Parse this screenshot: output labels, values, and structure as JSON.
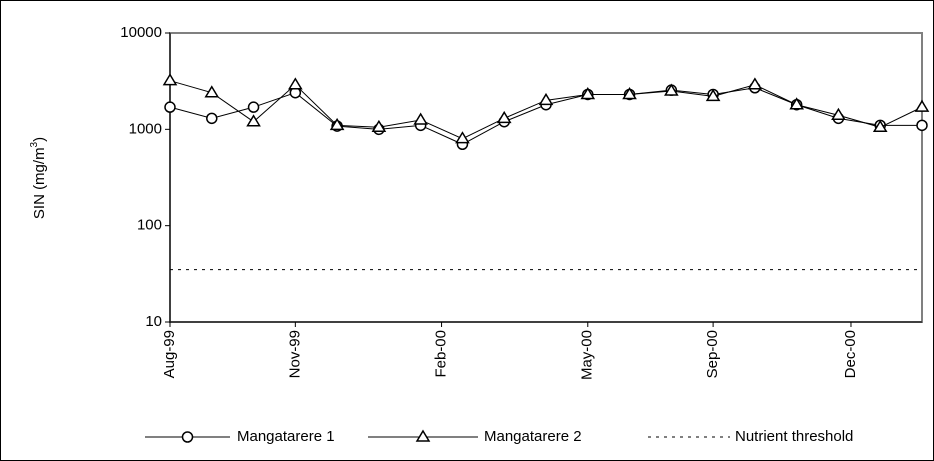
{
  "chart_data": {
    "type": "line",
    "ylabel": {
      "text": "SIN (mg/m",
      "superscript": "3",
      "suffix": ")"
    },
    "log_y": true,
    "ylim": [
      10,
      10000
    ],
    "yticks": [
      10,
      100,
      1000,
      10000
    ],
    "xlim": [
      0,
      18
    ],
    "xticks": [
      {
        "value": 0,
        "label": "Aug-99"
      },
      {
        "value": 3,
        "label": "Nov-99"
      },
      {
        "value": 6.5,
        "label": "Feb-00"
      },
      {
        "value": 10,
        "label": "May-00"
      },
      {
        "value": 13,
        "label": "Sep-00"
      },
      {
        "value": 16.3,
        "label": "Dec-00"
      }
    ],
    "x": [
      0,
      1,
      2,
      3,
      4,
      5,
      6,
      7,
      8,
      9,
      10,
      11,
      12,
      13,
      14,
      15,
      16,
      17,
      18
    ],
    "series": [
      {
        "name": "Mangatarere 1",
        "color": "#000000",
        "marker": "circle",
        "values": [
          1700,
          1300,
          1700,
          2400,
          1080,
          1000,
          1100,
          700,
          1200,
          1800,
          2300,
          2300,
          2550,
          2300,
          2700,
          1800,
          1300,
          1100,
          1100
        ]
      },
      {
        "name": "Mangatarere 2",
        "color": "#000000",
        "marker": "triangle",
        "values": [
          3200,
          2400,
          1200,
          2900,
          1100,
          1050,
          1250,
          800,
          1300,
          2000,
          2300,
          2300,
          2500,
          2200,
          2900,
          1800,
          1400,
          1050,
          1700
        ]
      }
    ],
    "threshold": {
      "name": "Nutrient threshold",
      "value": 35,
      "color": "#000000"
    }
  }
}
